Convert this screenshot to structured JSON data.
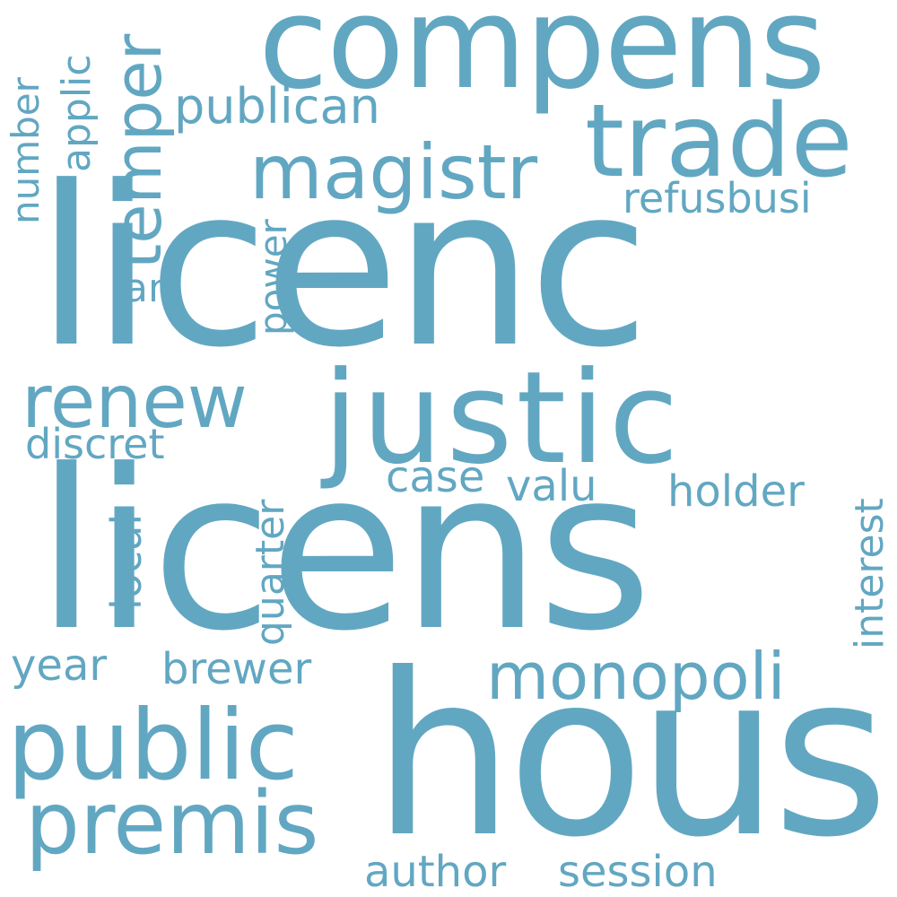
{
  "theme": {
    "background": "#ffffff",
    "word_color": "#62a7c2"
  },
  "words": {
    "licenc": "licenc",
    "licens": "licens",
    "hous": "hous",
    "compens": "compens",
    "justic": "justic",
    "trade": "trade",
    "magistr": "magistr",
    "public": "public",
    "premis": "premis",
    "renew": "renew",
    "monopoli": "monopoli",
    "temper": "temper",
    "publican": "publican",
    "refusbusi": "refusbusi",
    "applic": "applic",
    "number": "number",
    "ani": "ani",
    "power": "power",
    "discret": "discret",
    "case": "case",
    "valu": "valu",
    "holder": "holder",
    "interest": "interest",
    "local": "local",
    "quarter": "quarter",
    "year": "year",
    "brewer": "brewer",
    "author": "author",
    "session": "session"
  }
}
